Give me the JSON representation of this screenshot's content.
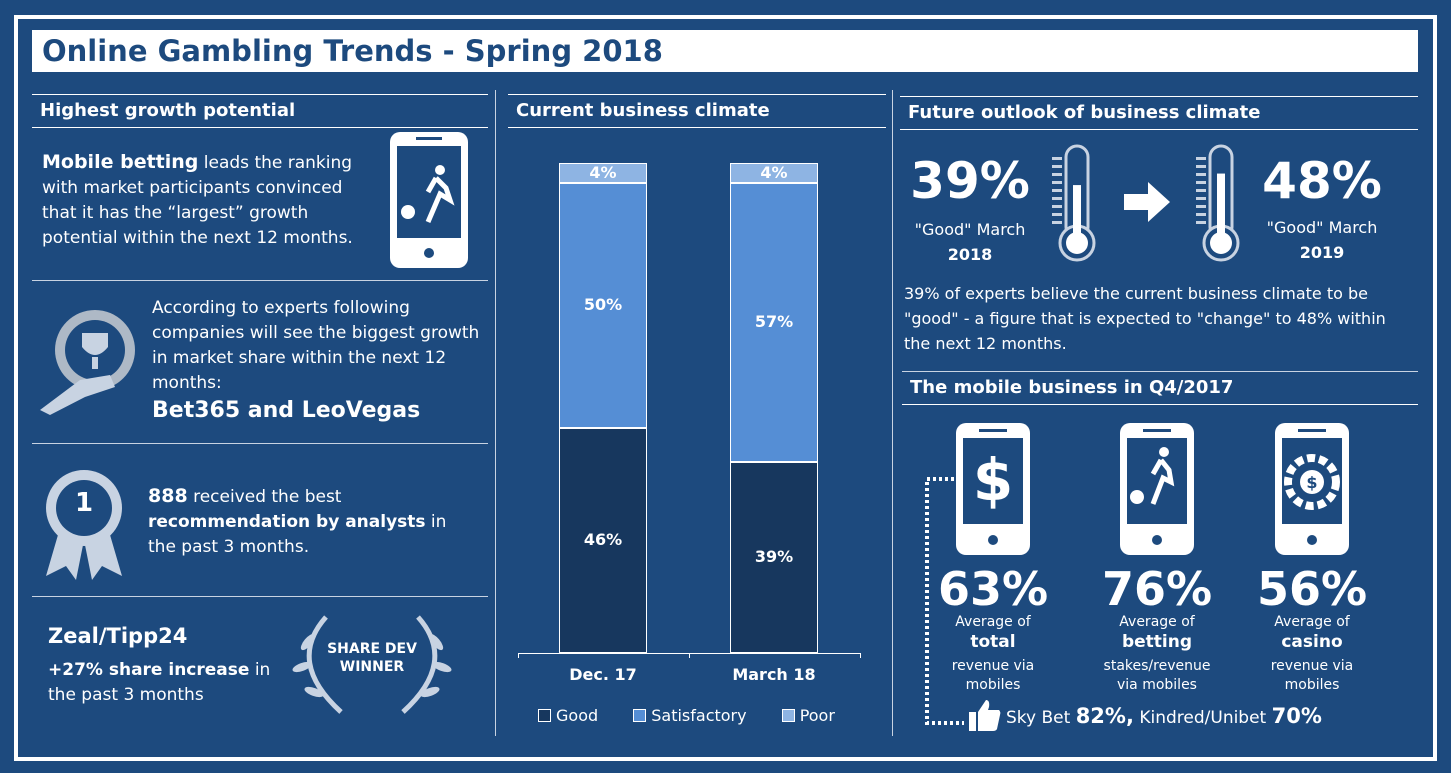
{
  "title": "Online Gambling Trends - Spring 2018",
  "left": {
    "growth": {
      "heading": "Highest growth potential",
      "bold": "Mobile betting",
      "text": " leads the ranking with market participants convinced that it has the “largest” growth potential within the next 12 months."
    },
    "experts": {
      "text": "According to experts following companies will see the biggest growth in market share within the next 12 months:",
      "companies": "Bet365 and LeoVegas"
    },
    "recommend": {
      "badge": "1",
      "bold1": "888",
      "t1": " received the best ",
      "bold2": "recommendation by analysts",
      "t2": " in the past 3 months."
    },
    "zeal": {
      "name": "Zeal/Tipp24",
      "bold": "+27% share increase",
      "t1": " in the past 3 months",
      "laurel": "SHARE DEV WINNER"
    }
  },
  "chart_data": {
    "type": "bar",
    "stacked": true,
    "title": "Current business climate",
    "categories": [
      "Dec. 17",
      "March 18"
    ],
    "series": [
      {
        "name": "Good",
        "values": [
          46,
          39
        ],
        "labels": [
          "46%",
          "39%"
        ],
        "color": "#17375e"
      },
      {
        "name": "Satisfactory",
        "values": [
          50,
          57
        ],
        "labels": [
          "50%",
          "57%"
        ],
        "color": "#558ed5"
      },
      {
        "name": "Poor",
        "values": [
          4,
          4
        ],
        "labels": [
          "4%",
          "4%"
        ],
        "color": "#8eb4e3"
      }
    ],
    "ylim": [
      0,
      100
    ],
    "legend": "bottom",
    "grid": false
  },
  "outlook": {
    "heading": "Future outlook of business climate",
    "now": {
      "value": "39%",
      "label": "\"Good\" March",
      "year": "2018",
      "fill": 0.39
    },
    "future": {
      "value": "48%",
      "label": "\"Good\" March",
      "year": "2019",
      "fill": 0.48
    },
    "text": "39% of experts believe the current business climate to be \"good\" - a figure that is expected to \"change\" to 48% within the next 12 months."
  },
  "mobile": {
    "heading": "The mobile business in Q4/2017",
    "items": [
      {
        "icon": "dollar-icon",
        "value": "63%",
        "l1": "Average of",
        "bold": "total",
        "l2": "revenue via",
        "l3": "mobiles"
      },
      {
        "icon": "football-player-icon",
        "value": "76%",
        "l1": "Average of",
        "bold": "betting",
        "l2": "stakes/revenue",
        "l3": "via mobiles"
      },
      {
        "icon": "casino-chip-icon",
        "value": "56%",
        "l1": "Average of",
        "bold": "casino",
        "l2": "revenue via",
        "l3": "mobiles"
      }
    ],
    "footer": {
      "a": "Sky Bet ",
      "av": "82%,",
      "b": " Kindred/Unibet ",
      "bv": "70%"
    }
  }
}
